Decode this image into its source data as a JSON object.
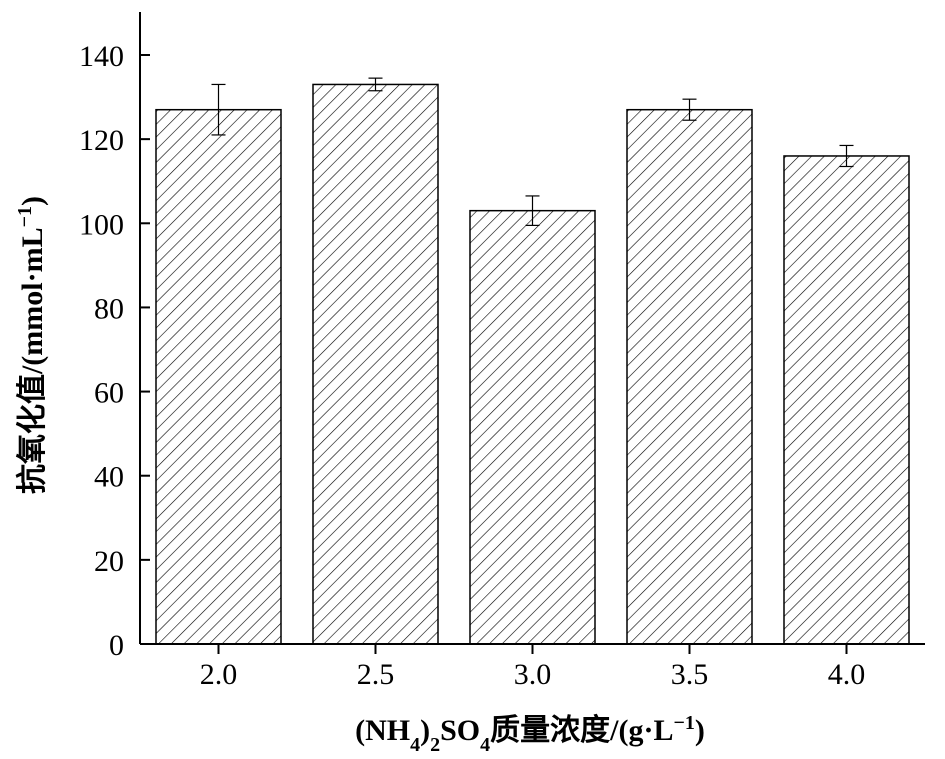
{
  "chart_data": {
    "type": "bar",
    "categories": [
      "2.0",
      "2.5",
      "3.0",
      "3.5",
      "4.0"
    ],
    "values": [
      127,
      133,
      103,
      127,
      116
    ],
    "errors": [
      6,
      1.5,
      3.5,
      2.5,
      2.5
    ],
    "xlabel": {
      "pre": "(NH",
      "sub1": "4",
      "mid1": ")",
      "sub2": "2",
      "mid2": "SO",
      "sub3": "4",
      "post": "质量浓度/(g·L",
      "sup": "−1",
      "end": ")"
    },
    "ylabel": {
      "main": "抗氧化值/(mmol·mL",
      "sup": "−1",
      "end": ")"
    },
    "ylim": [
      0,
      140
    ],
    "yticks": [
      0,
      20,
      40,
      60,
      80,
      100,
      120,
      140
    ],
    "grid": false,
    "legend": "none",
    "bar_fill": "hatched",
    "colors": {
      "bar_edge": "#000000",
      "hatch": "#000000",
      "background": "#ffffff"
    }
  }
}
